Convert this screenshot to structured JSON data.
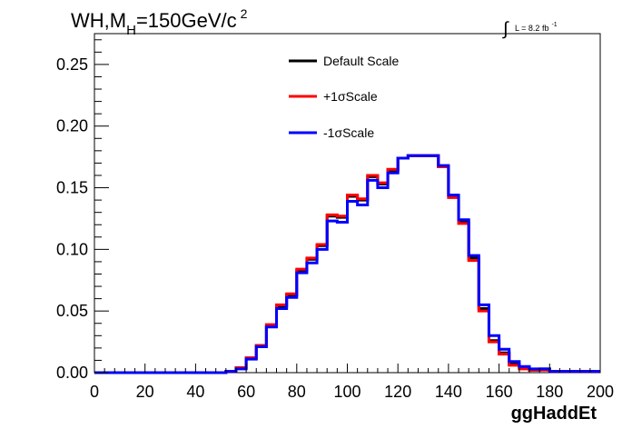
{
  "chart_data": {
    "type": "line",
    "step": true,
    "title_main": "WH,M",
    "title_sub": "H",
    "title_rest": "=150GeV/c",
    "title_sup": "2",
    "lumi_symbol": "∫",
    "lumi_text": "L = 8.2 fb",
    "lumi_sup": "-1",
    "xlabel": "ggHaddEt",
    "ylabel": "",
    "xlim": [
      0,
      200
    ],
    "ylim": [
      0,
      0.275
    ],
    "xticks": [
      "0",
      "20",
      "40",
      "60",
      "80",
      "100",
      "120",
      "140",
      "160",
      "180",
      "200"
    ],
    "yticks": [
      "0.00",
      "0.05",
      "0.10",
      "0.15",
      "0.20",
      "0.25"
    ],
    "bin_width": 4,
    "bin_edges_start": 0,
    "grid": false,
    "legend_position": "top-center",
    "series": [
      {
        "name": "Default Scale",
        "color": "#000000",
        "values": [
          0,
          0,
          0,
          0,
          0,
          0,
          0,
          0,
          0,
          0,
          0,
          0,
          0,
          0.001,
          0.004,
          0.012,
          0.022,
          0.038,
          0.054,
          0.063,
          0.083,
          0.092,
          0.103,
          0.127,
          0.126,
          0.143,
          0.14,
          0.159,
          0.153,
          0.164,
          0.174,
          0.176,
          0.176,
          0.176,
          0.167,
          0.143,
          0.123,
          0.093,
          0.052,
          0.026,
          0.016,
          0.007,
          0.004,
          0.002,
          0.003,
          0.001,
          0.001,
          0.001,
          0.001,
          0.001
        ]
      },
      {
        "name": "+1σScale",
        "color": "#ff0000",
        "values": [
          0,
          0,
          0,
          0,
          0,
          0,
          0,
          0,
          0,
          0,
          0,
          0,
          0,
          0.001,
          0.004,
          0.012,
          0.022,
          0.039,
          0.055,
          0.064,
          0.084,
          0.093,
          0.104,
          0.128,
          0.127,
          0.144,
          0.141,
          0.16,
          0.154,
          0.165,
          0.174,
          0.176,
          0.176,
          0.176,
          0.167,
          0.142,
          0.121,
          0.091,
          0.05,
          0.025,
          0.015,
          0.006,
          0.003,
          0.002,
          0.002,
          0.001,
          0.001,
          0.001,
          0.001,
          0.001
        ]
      },
      {
        "name": "-1σScale",
        "color": "#0000ff",
        "values": [
          0,
          0,
          0,
          0,
          0,
          0,
          0,
          0,
          0,
          0,
          0,
          0,
          0,
          0.001,
          0.003,
          0.011,
          0.021,
          0.037,
          0.052,
          0.061,
          0.081,
          0.089,
          0.1,
          0.123,
          0.122,
          0.139,
          0.136,
          0.156,
          0.15,
          0.162,
          0.174,
          0.176,
          0.176,
          0.176,
          0.168,
          0.144,
          0.124,
          0.095,
          0.055,
          0.03,
          0.019,
          0.009,
          0.005,
          0.003,
          0.003,
          0.001,
          0.001,
          0.001,
          0.001,
          0.001
        ]
      }
    ]
  }
}
